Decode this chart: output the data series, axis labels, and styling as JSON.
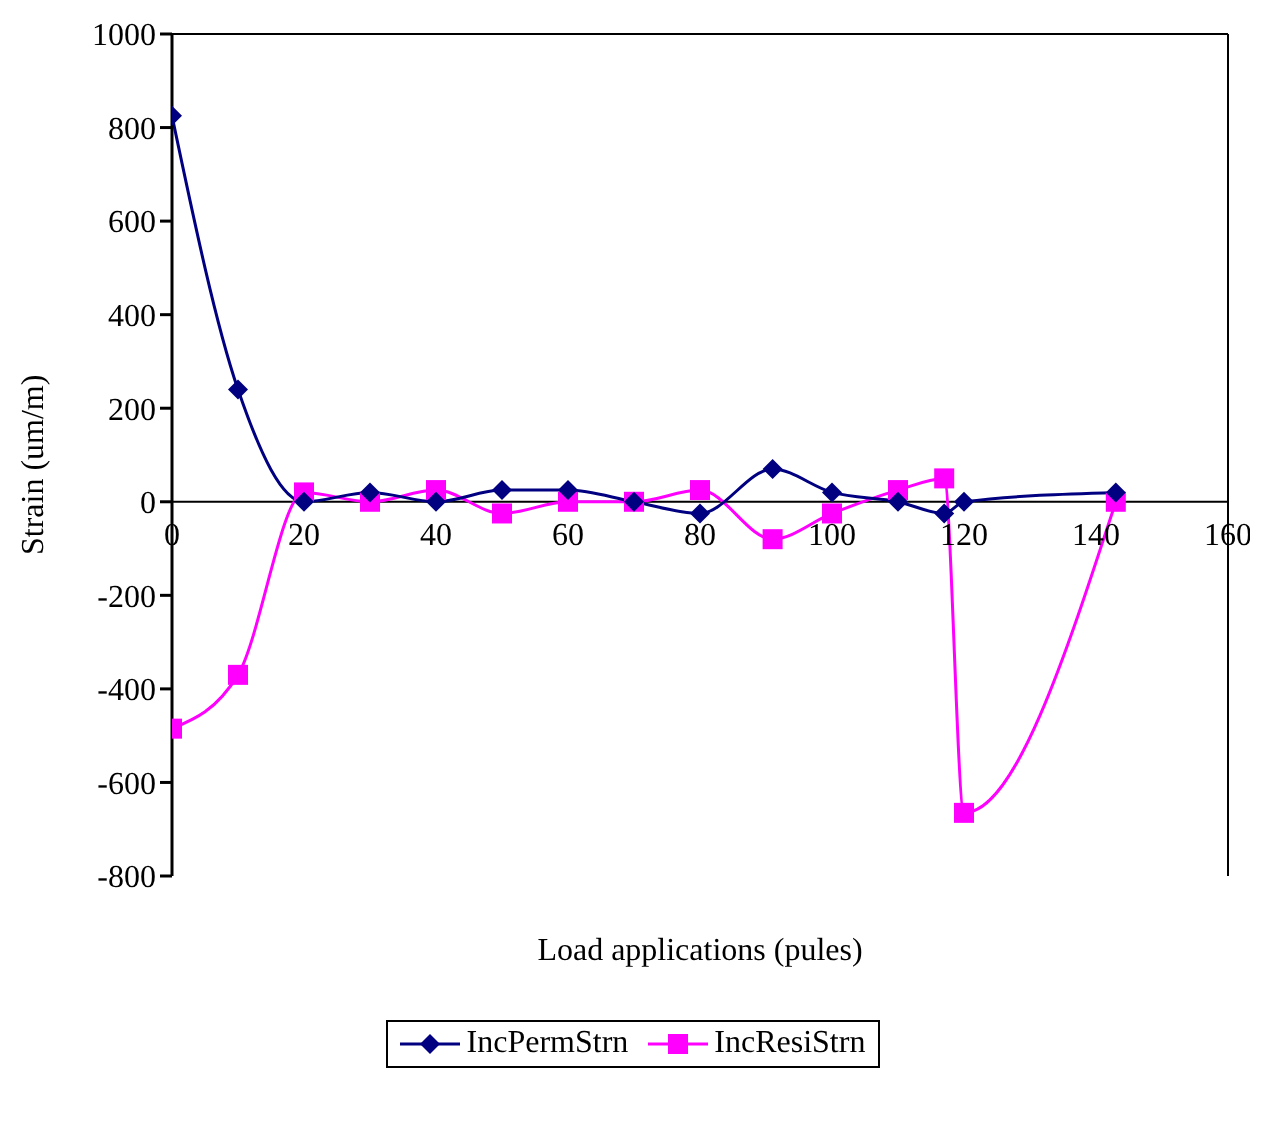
{
  "chart_data": {
    "type": "line",
    "xlabel": "Load applications (pules)",
    "ylabel": "Strain (um/m)",
    "xlim": [
      0,
      160
    ],
    "xticks": [
      0,
      20,
      40,
      60,
      80,
      100,
      120,
      140,
      160
    ],
    "ylim": [
      -800,
      1000
    ],
    "yticks": [
      -800,
      -600,
      -400,
      -200,
      0,
      200,
      400,
      600,
      800,
      1000
    ],
    "grid": false,
    "legend": "bottom",
    "line_style": "solid",
    "series": [
      {
        "name": "IncPermStrn",
        "color": "#000080",
        "marker": "diamond",
        "x": [
          0,
          10,
          20,
          30,
          40,
          50,
          60,
          70,
          80,
          91,
          100,
          110,
          117,
          120,
          143
        ],
        "values": [
          825,
          240,
          0,
          20,
          0,
          25,
          25,
          0,
          -25,
          70,
          20,
          0,
          -25,
          0,
          20
        ]
      },
      {
        "name": "IncResiStrn",
        "color": "#ff00ff",
        "marker": "square",
        "x": [
          0,
          10,
          20,
          30,
          40,
          50,
          60,
          70,
          80,
          91,
          100,
          110,
          117,
          120,
          143
        ],
        "values": [
          -485,
          -370,
          20,
          0,
          25,
          -25,
          0,
          0,
          25,
          -80,
          -25,
          25,
          50,
          -665,
          0
        ]
      }
    ]
  }
}
